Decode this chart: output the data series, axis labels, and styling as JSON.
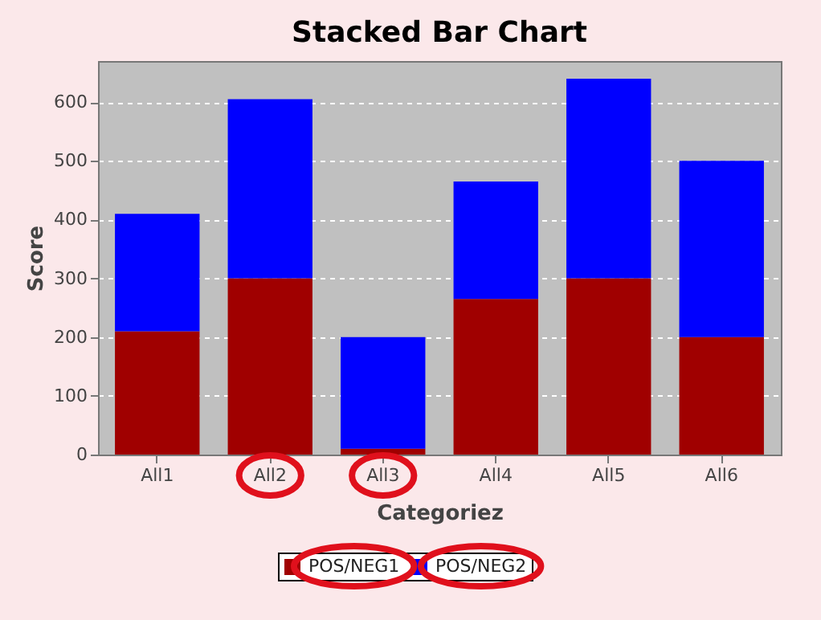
{
  "chart_data": {
    "type": "bar",
    "title": "Stacked Bar Chart",
    "xlabel": "Categoriez",
    "ylabel": "Score",
    "categories": [
      "All1",
      "All2",
      "All3",
      "All4",
      "All5",
      "All6"
    ],
    "series": [
      {
        "name": "POS/NEG1",
        "color": "#a00000",
        "values": [
          210,
          300,
          10,
          265,
          300,
          200
        ]
      },
      {
        "name": "POS/NEG2",
        "color": "#0000ff",
        "values": [
          200,
          305,
          190,
          200,
          340,
          300
        ]
      }
    ],
    "stacked": true,
    "ylim": [
      0,
      670
    ],
    "yticks": [
      0,
      100,
      200,
      300,
      400,
      500,
      600
    ],
    "grid": "y",
    "legend": "bottom"
  }
}
